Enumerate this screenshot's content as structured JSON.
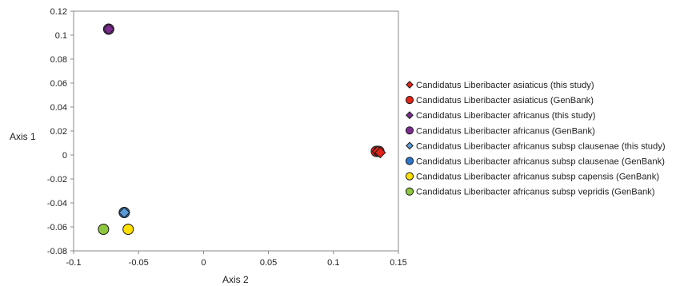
{
  "chart_data": {
    "type": "scatter",
    "title": "",
    "xlabel": "Axis 2",
    "ylabel": "Axis 1",
    "xlim": [
      -0.1,
      0.15
    ],
    "ylim": [
      -0.08,
      0.12
    ],
    "x_ticks": [
      "-0.1",
      "-0.05",
      "0",
      "0.05",
      "0.1",
      "0.15"
    ],
    "y_ticks": [
      "0.12",
      "0.1",
      "0.08",
      "0.06",
      "0.04",
      "0.02",
      "0",
      "-0.02",
      "-0.04",
      "-0.06",
      "-0.08"
    ],
    "grid": false,
    "legend_position": "right",
    "series": [
      {
        "name": "Candidatus Liberibacter asiaticus (this study)",
        "marker": "diamond",
        "color": "#e2231a",
        "points": [
          {
            "x": 0.134,
            "y": 0.003
          },
          {
            "x": 0.136,
            "y": 0.002
          }
        ]
      },
      {
        "name": "Candidatus Liberibacter asiaticus (GenBank)",
        "marker": "circle",
        "color": "#e2231a",
        "points": [
          {
            "x": 0.133,
            "y": 0.003
          },
          {
            "x": 0.135,
            "y": 0.003
          }
        ]
      },
      {
        "name": "Candidatus Liberibacter africanus (this study)",
        "marker": "diamond",
        "color": "#7b2d8e",
        "points": [
          {
            "x": -0.073,
            "y": 0.105
          }
        ]
      },
      {
        "name": "Candidatus Liberibacter africanus (GenBank)",
        "marker": "circle",
        "color": "#7b2d8e",
        "points": [
          {
            "x": -0.073,
            "y": 0.105
          }
        ]
      },
      {
        "name": "Candidatus Liberibacter africanus subsp clausenae (this study)",
        "marker": "diamond",
        "color": "#5b9bd5",
        "points": [
          {
            "x": -0.061,
            "y": -0.048
          }
        ]
      },
      {
        "name": "Candidatus Liberibacter africanus subsp clausenae (GenBank)",
        "marker": "circle",
        "color": "#2e75c9",
        "points": [
          {
            "x": -0.061,
            "y": -0.048
          }
        ]
      },
      {
        "name": "Candidatus Liberibacter africanus subsp capensis (GenBank)",
        "marker": "circle",
        "color": "#ffe000",
        "points": [
          {
            "x": -0.058,
            "y": -0.062
          }
        ]
      },
      {
        "name": "Candidatus Liberibacter africanus subsp vepridis (GenBank)",
        "marker": "circle",
        "color": "#8dc63f",
        "points": [
          {
            "x": -0.077,
            "y": -0.062
          }
        ]
      }
    ]
  }
}
